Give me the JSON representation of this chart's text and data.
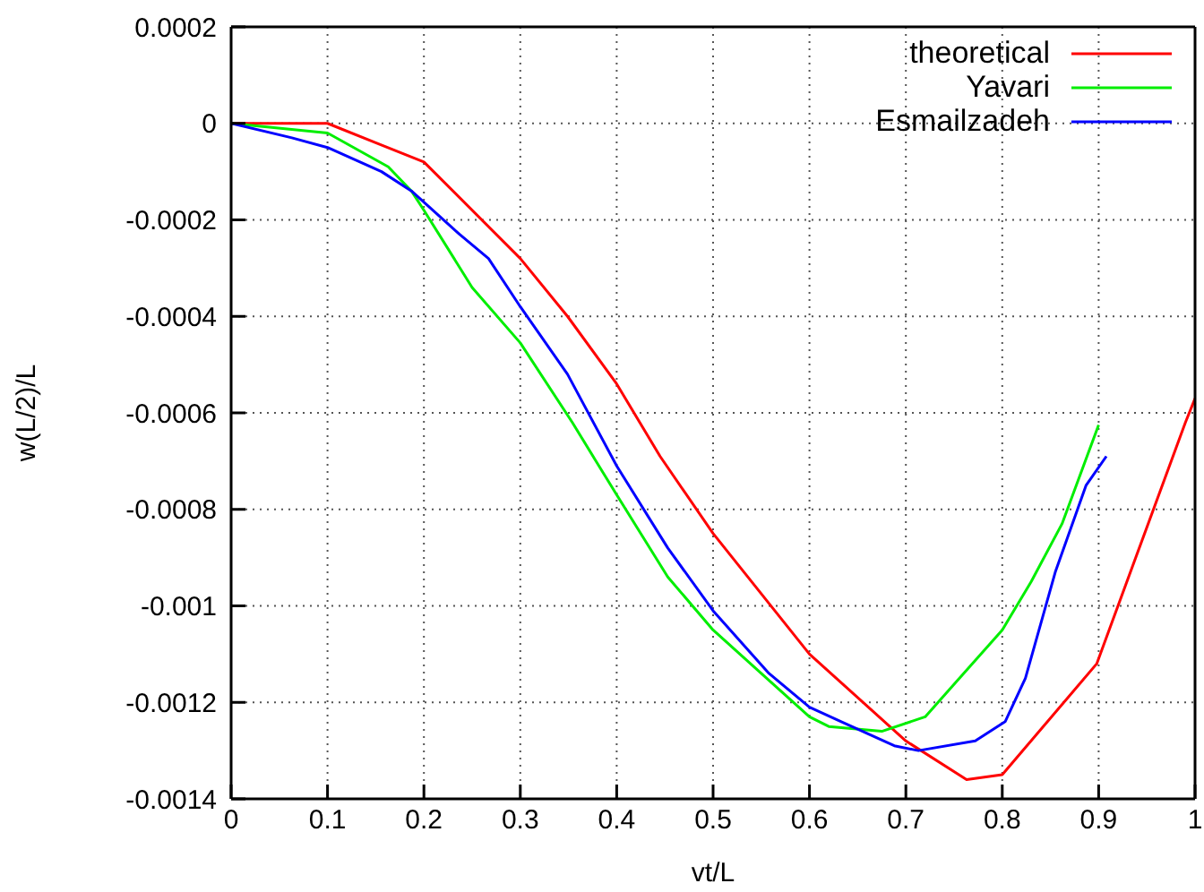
{
  "chart_data": {
    "type": "line",
    "xlabel": "vt/L",
    "ylabel": "w(L/2)/L",
    "xlim": [
      0,
      1
    ],
    "xticks": [
      0,
      0.1,
      0.2,
      0.3,
      0.4,
      0.5,
      0.6,
      0.7,
      0.8,
      0.9,
      1
    ],
    "ylim": [
      -0.0014,
      0.0002
    ],
    "yticks": [
      -0.0014,
      -0.0012,
      -0.001,
      -0.0008,
      -0.0006,
      -0.0004,
      -0.0002,
      0,
      0.0002
    ],
    "grid": true,
    "legend": "top right",
    "marker": "none",
    "line_style": "solid",
    "series": [
      {
        "name": "theoretical",
        "color": "#ff0000",
        "x": [
          0,
          0.057,
          0.1,
          0.15,
          0.2,
          0.3,
          0.349,
          0.4,
          0.445,
          0.5,
          0.6,
          0.7,
          0.763,
          0.8,
          0.898,
          0.99,
          1
        ],
        "values": [
          0,
          0,
          0,
          -4e-05,
          -8e-05,
          -0.00028,
          -0.0004,
          -0.00054,
          -0.00069,
          -0.00085,
          -0.0011,
          -0.00128,
          -0.00136,
          -0.00135,
          -0.00112,
          -0.00062,
          -0.00057
        ]
      },
      {
        "name": "Yavari",
        "color": "#00ee00",
        "x": [
          0,
          0.1,
          0.163,
          0.187,
          0.2,
          0.25,
          0.3,
          0.354,
          0.377,
          0.4,
          0.453,
          0.5,
          0.6,
          0.62,
          0.675,
          0.72,
          0.8,
          0.83,
          0.862,
          0.9
        ],
        "values": [
          0,
          -2e-05,
          -9e-05,
          -0.00014,
          -0.00018,
          -0.00034,
          -0.000455,
          -0.00062,
          -0.000695,
          -0.00077,
          -0.00094,
          -0.00105,
          -0.00123,
          -0.00125,
          -0.00126,
          -0.00123,
          -0.00105,
          -0.00095,
          -0.00083,
          -0.000625
        ]
      },
      {
        "name": "Esmailzadeh",
        "color": "#0000ff",
        "x": [
          0,
          0.063,
          0.1,
          0.156,
          0.187,
          0.237,
          0.267,
          0.3,
          0.349,
          0.4,
          0.453,
          0.5,
          0.558,
          0.6,
          0.633,
          0.688,
          0.713,
          0.772,
          0.803,
          0.824,
          0.855,
          0.887,
          0.908
        ],
        "values": [
          0,
          -3e-05,
          -5e-05,
          -0.0001,
          -0.00014,
          -0.00023,
          -0.00028,
          -0.00038,
          -0.00052,
          -0.00071,
          -0.00088,
          -0.00101,
          -0.00114,
          -0.00121,
          -0.00124,
          -0.00129,
          -0.0013,
          -0.00128,
          -0.00124,
          -0.00115,
          -0.00093,
          -0.00075,
          -0.00069
        ]
      }
    ]
  }
}
